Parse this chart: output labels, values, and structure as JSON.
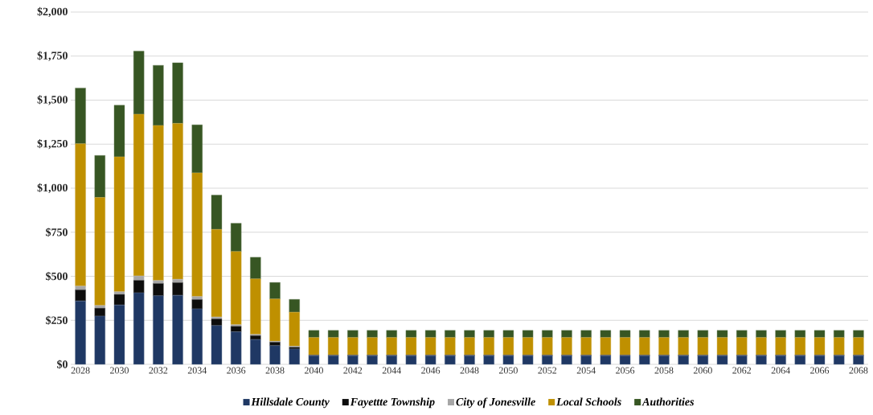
{
  "chart_data": {
    "type": "bar",
    "stacked": true,
    "categories": [
      "2028",
      null,
      "2030",
      null,
      "2032",
      null,
      "2034",
      null,
      "2036",
      null,
      "2038",
      null,
      "2040",
      null,
      "2042",
      null,
      "2044",
      null,
      "2046",
      null,
      "2048",
      null,
      "2050",
      null,
      "2052",
      null,
      "2054",
      null,
      "2056",
      null,
      "2058",
      null,
      "2060",
      null,
      "2062",
      null,
      "2064",
      null,
      "2066",
      null,
      "2068"
    ],
    "series": [
      {
        "name": "Hillsdale County",
        "color": "#1f3864",
        "values": [
          360,
          274,
          337,
          406,
          389,
          392,
          315,
          220,
          185,
          141,
          106,
          87,
          49,
          49,
          49,
          49,
          49,
          49,
          49,
          49,
          49,
          49,
          49,
          49,
          49,
          49,
          49,
          49,
          49,
          49,
          49,
          49,
          49,
          49,
          49,
          49,
          49,
          49,
          49,
          49,
          49
        ]
      },
      {
        "name": "Fayettte Township",
        "color": "#0d0d0d",
        "values": [
          63,
          45,
          60,
          71,
          70,
          72,
          53,
          38,
          31,
          22,
          20,
          10,
          3,
          3,
          3,
          3,
          3,
          3,
          3,
          3,
          3,
          3,
          3,
          3,
          3,
          3,
          3,
          3,
          3,
          3,
          3,
          3,
          3,
          3,
          3,
          3,
          3,
          3,
          3,
          3,
          3
        ]
      },
      {
        "name": "City of Jonesville",
        "color": "#a6a6a6",
        "values": [
          21,
          15,
          15,
          25,
          17,
          19,
          17,
          11,
          9,
          7,
          5,
          6,
          1,
          1,
          1,
          1,
          1,
          1,
          1,
          1,
          1,
          1,
          1,
          1,
          1,
          1,
          1,
          1,
          1,
          1,
          1,
          1,
          1,
          1,
          1,
          1,
          1,
          1,
          1,
          1,
          1
        ]
      },
      {
        "name": "Local Schools",
        "color": "#bf9000",
        "values": [
          808,
          613,
          766,
          918,
          880,
          885,
          702,
          497,
          415,
          315,
          240,
          193,
          99,
          99,
          99,
          99,
          99,
          99,
          99,
          99,
          99,
          99,
          99,
          99,
          99,
          99,
          99,
          99,
          99,
          99,
          99,
          99,
          99,
          99,
          99,
          99,
          99,
          99,
          99,
          99,
          99
        ]
      },
      {
        "name": "Authorities",
        "color": "#375623",
        "values": [
          317,
          239,
          293,
          358,
          342,
          344,
          273,
          195,
          161,
          123,
          94,
          73,
          41,
          41,
          41,
          41,
          41,
          41,
          41,
          41,
          41,
          41,
          41,
          41,
          41,
          41,
          41,
          41,
          41,
          41,
          41,
          41,
          41,
          41,
          41,
          41,
          41,
          41,
          41,
          41,
          41
        ]
      }
    ],
    "ylim": [
      0,
      2000
    ],
    "yticks": [
      {
        "value": 0,
        "label": "$0"
      },
      {
        "value": 250,
        "label": "$250"
      },
      {
        "value": 500,
        "label": "$500"
      },
      {
        "value": 750,
        "label": "$750"
      },
      {
        "value": 1000,
        "label": "$1,000"
      },
      {
        "value": 1250,
        "label": "$1,250"
      },
      {
        "value": 1500,
        "label": "$1,500"
      },
      {
        "value": 1750,
        "label": "$1,750"
      },
      {
        "value": 2000,
        "label": "$2,000"
      }
    ],
    "grid": "y",
    "legend": "bottom"
  }
}
